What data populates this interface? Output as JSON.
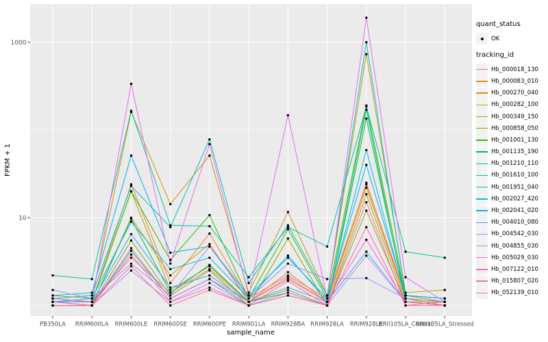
{
  "chart_data": {
    "type": "line",
    "title": "",
    "xlabel": "sample_name",
    "ylabel": "FPKM + 1",
    "y_scale": "log10",
    "ylim": [
      0.76,
      2720
    ],
    "grid": "on",
    "panel_bg": "#EBEBEB",
    "grid_color": "#FFFFFF",
    "point_color": "#000000",
    "axis_text_color": "#4D4D4D",
    "y_ticks": [
      {
        "label": "10",
        "value": 10
      },
      {
        "label": "1000",
        "value": 1000
      }
    ],
    "y_minor_gridlines": [
      1,
      100
    ],
    "categories": [
      "PB350LA",
      "RRIM600LA",
      "RRIM600LE",
      "RRIM600SE",
      "RRIM600PE",
      "RRIM901LA",
      "RRIM928BA",
      "RRIM928LA",
      "RRIM928LE",
      "RRII105LA_Control",
      "RRII105LA_Stressed"
    ],
    "legend": {
      "position": "right",
      "quant_status_title": "quant_status",
      "quant_status_items": [
        {
          "label": "OK",
          "shape": "point"
        }
      ],
      "tracking_title": "tracking_id"
    },
    "series": [
      {
        "name": "Hb_000018_130",
        "color": "#F8766D",
        "values": [
          1.1,
          1.1,
          3.5,
          1.4,
          2.6,
          1.1,
          2.4,
          1.1,
          25,
          1.2,
          1.1
        ]
      },
      {
        "name": "Hb_000083_010",
        "color": "#EA8331",
        "values": [
          1.2,
          1.1,
          24,
          1.8,
          6.6,
          1.2,
          2.2,
          1.2,
          24,
          1.3,
          1.1
        ]
      },
      {
        "name": "Hb_000270_040",
        "color": "#D89000",
        "values": [
          1.1,
          1.0,
          10,
          2.2,
          5.0,
          1.1,
          2.0,
          1.1,
          22,
          1.2,
          1.0
        ]
      },
      {
        "name": "Hb_000282_100",
        "color": "#C09B00",
        "values": [
          1.3,
          1.2,
          160,
          14.3,
          51,
          1.4,
          11.6,
          1.3,
          730,
          1.4,
          1.5
        ]
      },
      {
        "name": "Hb_000349_150",
        "color": "#A3A500",
        "values": [
          1.1,
          1.1,
          20,
          1.5,
          2.8,
          1.1,
          1.5,
          1.0,
          18.5,
          1.1,
          1.1
        ]
      },
      {
        "name": "Hb_000858_050",
        "color": "#7CAE00",
        "values": [
          1.0,
          1.0,
          5.5,
          1.3,
          2.5,
          1.0,
          5.8,
          1.0,
          12,
          1.1,
          1.0
        ]
      },
      {
        "name": "Hb_001001_130",
        "color": "#39B600",
        "values": [
          1.2,
          1.1,
          20,
          3.3,
          10.7,
          1.2,
          7.4,
          1.2,
          190,
          1.3,
          1.2
        ]
      },
      {
        "name": "Hb_001135_190",
        "color": "#00BB4E",
        "values": [
          1.1,
          1.0,
          9.7,
          1.4,
          2.9,
          1.1,
          1.4,
          1.0,
          135,
          1.2,
          1.1
        ]
      },
      {
        "name": "Hb_001210_110",
        "color": "#00BF7D",
        "values": [
          1.0,
          1.0,
          4.2,
          1.2,
          2.0,
          1.0,
          1.3,
          1.0,
          170,
          1.1,
          1.0
        ]
      },
      {
        "name": "Hb_001610_100",
        "color": "#00C1A3",
        "values": [
          2.2,
          2.0,
          165,
          8.2,
          8.0,
          2.1,
          7.8,
          4.7,
          185,
          4.1,
          3.5
        ]
      },
      {
        "name": "Hb_001951_040",
        "color": "#00BFC4",
        "values": [
          1.2,
          1.3,
          23,
          7.8,
          78,
          1.8,
          8.2,
          1.3,
          1000,
          1.3,
          1.2
        ]
      },
      {
        "name": "Hb_002027_420",
        "color": "#00BAE0",
        "values": [
          1.1,
          1.2,
          9.0,
          2.6,
          3.5,
          1.2,
          3.7,
          1.1,
          59,
          1.2,
          1.1
        ]
      },
      {
        "name": "Hb_002041_020",
        "color": "#00B0F6",
        "values": [
          1.3,
          1.4,
          51,
          4.0,
          4.7,
          1.3,
          3.5,
          1.2,
          40,
          1.3,
          1.2
        ]
      },
      {
        "name": "Hb_004010_080",
        "color": "#35A2FF",
        "values": [
          1.1,
          1.1,
          6.5,
          1.6,
          2.2,
          1.1,
          1.6,
          1.1,
          4.1,
          1.1,
          1.0
        ]
      },
      {
        "name": "Hb_004542_030",
        "color": "#9590FF",
        "values": [
          1.5,
          1.2,
          3.0,
          1.3,
          4.7,
          1.2,
          3.0,
          2.0,
          2.05,
          1.2,
          1.1
        ]
      },
      {
        "name": "Hb_004855_030",
        "color": "#C77CFF",
        "values": [
          1.1,
          1.0,
          2.5,
          1.1,
          1.8,
          1.0,
          1.4,
          1.0,
          3.7,
          1.1,
          1.0
        ]
      },
      {
        "name": "Hb_005029_030",
        "color": "#E76BF3",
        "values": [
          1.2,
          1.1,
          335,
          3.0,
          69,
          1.3,
          147,
          1.2,
          1900,
          2.1,
          1.1
        ]
      },
      {
        "name": "Hb_007122_010",
        "color": "#FA62DB",
        "values": [
          1.1,
          1.0,
          4.5,
          1.2,
          2.0,
          1.1,
          2.1,
          1.1,
          5.6,
          1.1,
          1.0
        ]
      },
      {
        "name": "Hb_015807_020",
        "color": "#FF62BC",
        "values": [
          1.0,
          1.0,
          3.8,
          1.1,
          1.6,
          1.0,
          1.9,
          1.0,
          7.8,
          1.0,
          1.1
        ]
      },
      {
        "name": "Hb_052139_010",
        "color": "#FF6A98",
        "values": [
          1.0,
          1.0,
          2.8,
          1.0,
          1.5,
          1.0,
          1.3,
          1.0,
          15,
          1.0,
          1.0
        ]
      }
    ]
  }
}
